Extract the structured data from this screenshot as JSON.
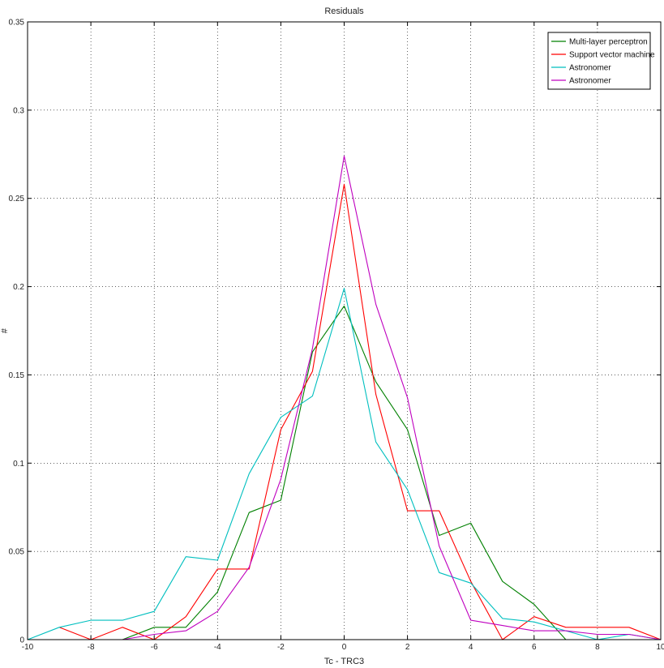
{
  "chart_data": {
    "type": "line",
    "title": "Residuals",
    "xlabel": "Tc - TRC3",
    "ylabel": "#",
    "xlim": [
      -10,
      10
    ],
    "ylim": [
      0,
      0.35
    ],
    "xticks": [
      -10,
      -8,
      -6,
      -4,
      -2,
      0,
      2,
      4,
      6,
      8,
      10
    ],
    "yticks": [
      0,
      0.05,
      0.1,
      0.15,
      0.2,
      0.25,
      0.3,
      0.35
    ],
    "xtick_labels": [
      "-10",
      "-8",
      "-6",
      "-4",
      "-2",
      "0",
      "2",
      "4",
      "6",
      "8",
      "10"
    ],
    "ytick_labels": [
      "0",
      "0.05",
      "0.1",
      "0.15",
      "0.2",
      "0.25",
      "0.3",
      "0.35"
    ],
    "grid": true,
    "legend_position": "top-right",
    "series": [
      {
        "name": "Multi-layer perceptron",
        "color": "#008000",
        "x": [
          -7,
          -6,
          -5,
          -4,
          -3,
          -2,
          -1,
          0,
          1,
          2,
          3,
          4,
          5,
          6,
          7
        ],
        "y": [
          0,
          0.007,
          0.007,
          0.027,
          0.072,
          0.079,
          0.163,
          0.189,
          0.146,
          0.119,
          0.059,
          0.066,
          0.033,
          0.02,
          0
        ]
      },
      {
        "name": "Support vector machine",
        "color": "#ff0000",
        "x": [
          -9,
          -8,
          -7,
          -6,
          -5,
          -4,
          -3,
          -2,
          -1,
          0,
          1,
          2,
          3,
          4,
          5,
          6,
          7,
          8,
          9,
          10
        ],
        "y": [
          0.007,
          0,
          0.007,
          0,
          0.013,
          0.04,
          0.04,
          0.119,
          0.152,
          0.258,
          0.139,
          0.073,
          0.073,
          0.033,
          0,
          0.013,
          0.007,
          0.007,
          0.007,
          0
        ]
      },
      {
        "name": "Astronomer",
        "color": "#00bfbf",
        "x": [
          -10,
          -9,
          -8,
          -7,
          -6,
          -5,
          -4,
          -3,
          -2,
          -1,
          0,
          1,
          2,
          3,
          4,
          5,
          6,
          7,
          8,
          9,
          10
        ],
        "y": [
          0,
          0.007,
          0.011,
          0.011,
          0.016,
          0.047,
          0.045,
          0.094,
          0.126,
          0.138,
          0.199,
          0.112,
          0.085,
          0.038,
          0.032,
          0.012,
          0.01,
          0.005,
          0,
          0.003,
          0
        ]
      },
      {
        "name": "Astronomer",
        "color": "#bf00bf",
        "x": [
          -7,
          -6,
          -5,
          -4,
          -3,
          -2,
          -1,
          0,
          1,
          2,
          3,
          4,
          5,
          6,
          7,
          8,
          9,
          10
        ],
        "y": [
          0,
          0.003,
          0.005,
          0.016,
          0.041,
          0.091,
          0.165,
          0.274,
          0.19,
          0.137,
          0.053,
          0.011,
          0.008,
          0.005,
          0.005,
          0.003,
          0.003,
          0
        ]
      }
    ]
  }
}
